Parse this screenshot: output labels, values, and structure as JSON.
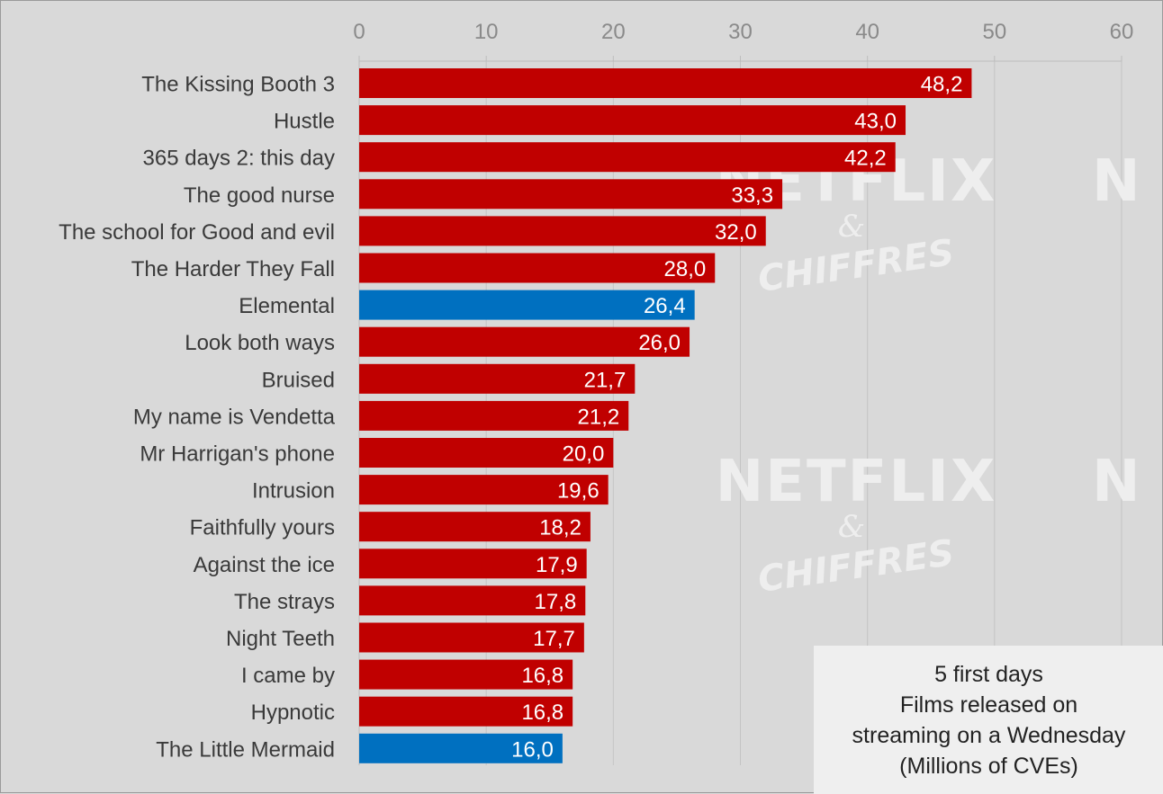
{
  "chart_data": {
    "type": "bar",
    "orientation": "horizontal",
    "xlim": [
      0,
      60
    ],
    "xticks": [
      0,
      10,
      20,
      30,
      40,
      50,
      60
    ],
    "grid": true,
    "categories": [
      "The Kissing Booth 3",
      "Hustle",
      "365 days 2: this day",
      "The good nurse",
      "The school for Good and evil",
      "The Harder They Fall",
      "Elemental",
      "Look both ways",
      "Bruised",
      "My name is Vendetta",
      "Mr Harrigan's phone",
      "Intrusion",
      "Faithfully yours",
      "Against the ice",
      "The strays",
      "Night Teeth",
      "I came by",
      "Hypnotic",
      "The Little Mermaid"
    ],
    "values": [
      48.2,
      43.0,
      42.2,
      33.3,
      32.0,
      28.0,
      26.4,
      26.0,
      21.7,
      21.2,
      20.0,
      19.6,
      18.2,
      17.9,
      17.8,
      17.7,
      16.8,
      16.8,
      16.0
    ],
    "value_labels": [
      "48,2",
      "43,0",
      "42,2",
      "33,3",
      "32,0",
      "28,0",
      "26,4",
      "26,0",
      "21,7",
      "21,2",
      "20,0",
      "19,6",
      "18,2",
      "17,9",
      "17,8",
      "17,7",
      "16,8",
      "16,8",
      "16,0"
    ],
    "highlighted": [
      false,
      false,
      false,
      false,
      false,
      false,
      true,
      false,
      false,
      false,
      false,
      false,
      false,
      false,
      false,
      false,
      false,
      false,
      true
    ],
    "colors": {
      "default": "#c00000",
      "highlight": "#0070c0",
      "background": "#d9d9d9",
      "grid": "#c4c4c4"
    },
    "legend_placement": "bottom-right"
  },
  "legend": {
    "line1": "5 first days",
    "line2": "Films released on",
    "line3": "streaming on a Wednesday",
    "line4": "(Millions of CVEs)"
  },
  "watermark": {
    "brand": "NETFLIX",
    "amp": "&",
    "sub": "CHIFFRES",
    "edge": "N"
  }
}
